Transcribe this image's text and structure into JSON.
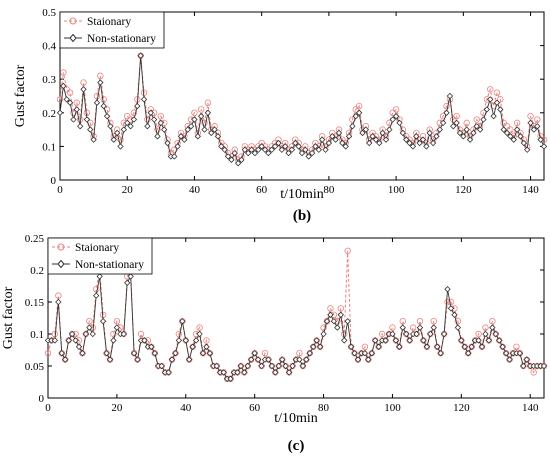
{
  "chart_data": [
    {
      "type": "line",
      "panel_label": "(b)",
      "xlabel": "t/10min",
      "ylabel": "Gust factor",
      "xlim": [
        0,
        144
      ],
      "ylim": [
        0,
        0.5
      ],
      "xticks": [
        0,
        20,
        40,
        60,
        80,
        100,
        120,
        140
      ],
      "yticks": [
        0,
        0.1,
        0.2,
        0.3,
        0.4,
        0.5
      ],
      "ytick_labels": [
        "0",
        "0.1",
        "0.2",
        "0.3",
        "0.4",
        "0.5"
      ],
      "legend_position": "top-left",
      "grid": false,
      "series": [
        {
          "name": "Staionary",
          "color": "#e8837f",
          "style": "dashed-circle",
          "values": [
            0.24,
            0.32,
            0.27,
            0.26,
            0.2,
            0.23,
            0.18,
            0.29,
            0.2,
            0.17,
            0.13,
            0.25,
            0.31,
            0.24,
            0.21,
            0.17,
            0.13,
            0.15,
            0.12,
            0.17,
            0.19,
            0.18,
            0.2,
            0.24,
            0.37,
            0.26,
            0.18,
            0.21,
            0.2,
            0.15,
            0.19,
            0.17,
            0.12,
            0.08,
            0.09,
            0.11,
            0.14,
            0.13,
            0.16,
            0.18,
            0.2,
            0.14,
            0.21,
            0.17,
            0.23,
            0.15,
            0.16,
            0.14,
            0.11,
            0.1,
            0.08,
            0.07,
            0.09,
            0.06,
            0.07,
            0.1,
            0.09,
            0.1,
            0.09,
            0.1,
            0.11,
            0.1,
            0.09,
            0.1,
            0.11,
            0.12,
            0.1,
            0.11,
            0.09,
            0.1,
            0.12,
            0.11,
            0.09,
            0.1,
            0.08,
            0.09,
            0.11,
            0.1,
            0.13,
            0.1,
            0.12,
            0.14,
            0.13,
            0.15,
            0.12,
            0.11,
            0.14,
            0.18,
            0.21,
            0.22,
            0.15,
            0.16,
            0.12,
            0.14,
            0.13,
            0.12,
            0.15,
            0.13,
            0.17,
            0.2,
            0.21,
            0.18,
            0.15,
            0.13,
            0.12,
            0.11,
            0.14,
            0.12,
            0.13,
            0.11,
            0.15,
            0.12,
            0.14,
            0.17,
            0.19,
            0.22,
            0.24,
            0.18,
            0.19,
            0.15,
            0.14,
            0.17,
            0.13,
            0.15,
            0.18,
            0.16,
            0.2,
            0.24,
            0.27,
            0.22,
            0.26,
            0.24,
            0.17,
            0.16,
            0.15,
            0.13,
            0.17,
            0.14,
            0.12,
            0.1,
            0.19,
            0.16,
            0.18,
            0.13,
            0.12
          ],
          "markers_every": 1
        },
        {
          "name": "Non-stationary",
          "color": "#333333",
          "style": "solid-diamond",
          "values": [
            0.2,
            0.28,
            0.24,
            0.23,
            0.18,
            0.21,
            0.16,
            0.27,
            0.18,
            0.15,
            0.12,
            0.23,
            0.29,
            0.22,
            0.19,
            0.16,
            0.12,
            0.14,
            0.1,
            0.15,
            0.17,
            0.16,
            0.18,
            0.22,
            0.37,
            0.24,
            0.16,
            0.2,
            0.18,
            0.13,
            0.17,
            0.15,
            0.11,
            0.07,
            0.07,
            0.1,
            0.13,
            0.12,
            0.15,
            0.16,
            0.18,
            0.13,
            0.19,
            0.15,
            0.2,
            0.14,
            0.15,
            0.13,
            0.1,
            0.09,
            0.07,
            0.06,
            0.08,
            0.05,
            0.06,
            0.09,
            0.08,
            0.09,
            0.08,
            0.09,
            0.1,
            0.09,
            0.08,
            0.09,
            0.1,
            0.11,
            0.09,
            0.1,
            0.08,
            0.09,
            0.11,
            0.1,
            0.08,
            0.09,
            0.07,
            0.08,
            0.1,
            0.09,
            0.12,
            0.09,
            0.11,
            0.13,
            0.12,
            0.14,
            0.11,
            0.1,
            0.13,
            0.16,
            0.19,
            0.2,
            0.14,
            0.15,
            0.11,
            0.13,
            0.12,
            0.11,
            0.14,
            0.12,
            0.15,
            0.18,
            0.19,
            0.17,
            0.14,
            0.12,
            0.11,
            0.1,
            0.13,
            0.11,
            0.12,
            0.1,
            0.14,
            0.11,
            0.13,
            0.15,
            0.17,
            0.2,
            0.25,
            0.16,
            0.17,
            0.14,
            0.13,
            0.15,
            0.12,
            0.14,
            0.16,
            0.15,
            0.18,
            0.21,
            0.24,
            0.19,
            0.23,
            0.21,
            0.15,
            0.14,
            0.13,
            0.12,
            0.15,
            0.13,
            0.11,
            0.09,
            0.17,
            0.15,
            0.16,
            0.12,
            0.1
          ],
          "markers_every": 1
        }
      ]
    },
    {
      "type": "line",
      "panel_label": "(c)",
      "xlabel": "t/10min",
      "ylabel": "Gust factor",
      "xlim": [
        0,
        144
      ],
      "ylim": [
        0,
        0.25
      ],
      "xticks": [
        0,
        20,
        40,
        60,
        80,
        100,
        120,
        140
      ],
      "yticks": [
        0,
        0.05,
        0.1,
        0.15,
        0.2,
        0.25
      ],
      "ytick_labels": [
        "0",
        "0.05",
        "0.1",
        "0.15",
        "0.2",
        "0.25"
      ],
      "legend_position": "top-left",
      "grid": false,
      "series": [
        {
          "name": "Staionary",
          "color": "#e8837f",
          "style": "dashed-circle",
          "values": [
            0.07,
            0.09,
            0.1,
            0.16,
            0.07,
            0.06,
            0.09,
            0.1,
            0.1,
            0.09,
            0.07,
            0.1,
            0.12,
            0.11,
            0.17,
            0.2,
            0.13,
            0.07,
            0.06,
            0.1,
            0.12,
            0.11,
            0.1,
            0.19,
            0.2,
            0.07,
            0.06,
            0.1,
            0.09,
            0.09,
            0.08,
            0.07,
            0.05,
            0.05,
            0.04,
            0.04,
            0.06,
            0.07,
            0.1,
            0.12,
            0.09,
            0.06,
            0.08,
            0.1,
            0.11,
            0.07,
            0.09,
            0.07,
            0.05,
            0.05,
            0.04,
            0.04,
            0.03,
            0.03,
            0.04,
            0.04,
            0.05,
            0.04,
            0.05,
            0.06,
            0.07,
            0.06,
            0.05,
            0.07,
            0.06,
            0.05,
            0.04,
            0.05,
            0.06,
            0.05,
            0.04,
            0.05,
            0.06,
            0.07,
            0.05,
            0.06,
            0.07,
            0.08,
            0.09,
            0.08,
            0.11,
            0.12,
            0.14,
            0.13,
            0.12,
            0.14,
            0.1,
            0.23,
            0.08,
            0.07,
            0.06,
            0.07,
            0.08,
            0.06,
            0.07,
            0.09,
            0.08,
            0.1,
            0.09,
            0.1,
            0.11,
            0.09,
            0.08,
            0.12,
            0.1,
            0.09,
            0.11,
            0.1,
            0.12,
            0.09,
            0.08,
            0.1,
            0.12,
            0.08,
            0.07,
            0.1,
            0.15,
            0.15,
            0.14,
            0.12,
            0.09,
            0.08,
            0.07,
            0.08,
            0.09,
            0.1,
            0.08,
            0.11,
            0.09,
            0.12,
            0.1,
            0.09,
            0.08,
            0.07,
            0.06,
            0.07,
            0.08,
            0.07,
            0.05,
            0.06,
            0.05,
            0.04,
            0.05,
            0.05,
            0.05
          ],
          "markers_every": 1
        },
        {
          "name": "Non-stationary",
          "color": "#333333",
          "style": "solid-diamond",
          "values": [
            0.09,
            0.09,
            0.09,
            0.15,
            0.07,
            0.06,
            0.09,
            0.1,
            0.09,
            0.08,
            0.07,
            0.1,
            0.11,
            0.1,
            0.16,
            0.19,
            0.12,
            0.07,
            0.06,
            0.09,
            0.11,
            0.1,
            0.1,
            0.18,
            0.19,
            0.07,
            0.06,
            0.09,
            0.09,
            0.08,
            0.08,
            0.07,
            0.05,
            0.05,
            0.04,
            0.04,
            0.06,
            0.07,
            0.09,
            0.12,
            0.09,
            0.06,
            0.08,
            0.09,
            0.1,
            0.07,
            0.08,
            0.07,
            0.05,
            0.05,
            0.04,
            0.04,
            0.03,
            0.03,
            0.04,
            0.04,
            0.05,
            0.04,
            0.05,
            0.06,
            0.07,
            0.06,
            0.05,
            0.06,
            0.06,
            0.05,
            0.04,
            0.05,
            0.06,
            0.05,
            0.04,
            0.05,
            0.06,
            0.06,
            0.05,
            0.06,
            0.07,
            0.08,
            0.09,
            0.08,
            0.1,
            0.12,
            0.13,
            0.12,
            0.11,
            0.13,
            0.09,
            0.12,
            0.08,
            0.07,
            0.06,
            0.07,
            0.07,
            0.06,
            0.07,
            0.09,
            0.08,
            0.09,
            0.09,
            0.1,
            0.1,
            0.09,
            0.08,
            0.11,
            0.1,
            0.09,
            0.1,
            0.1,
            0.11,
            0.09,
            0.08,
            0.1,
            0.11,
            0.08,
            0.07,
            0.1,
            0.17,
            0.14,
            0.13,
            0.11,
            0.09,
            0.08,
            0.07,
            0.08,
            0.09,
            0.09,
            0.08,
            0.1,
            0.09,
            0.11,
            0.1,
            0.09,
            0.08,
            0.07,
            0.06,
            0.07,
            0.07,
            0.07,
            0.05,
            0.06,
            0.05,
            0.05,
            0.05,
            0.05,
            0.05
          ],
          "markers_every": 1
        }
      ]
    }
  ]
}
